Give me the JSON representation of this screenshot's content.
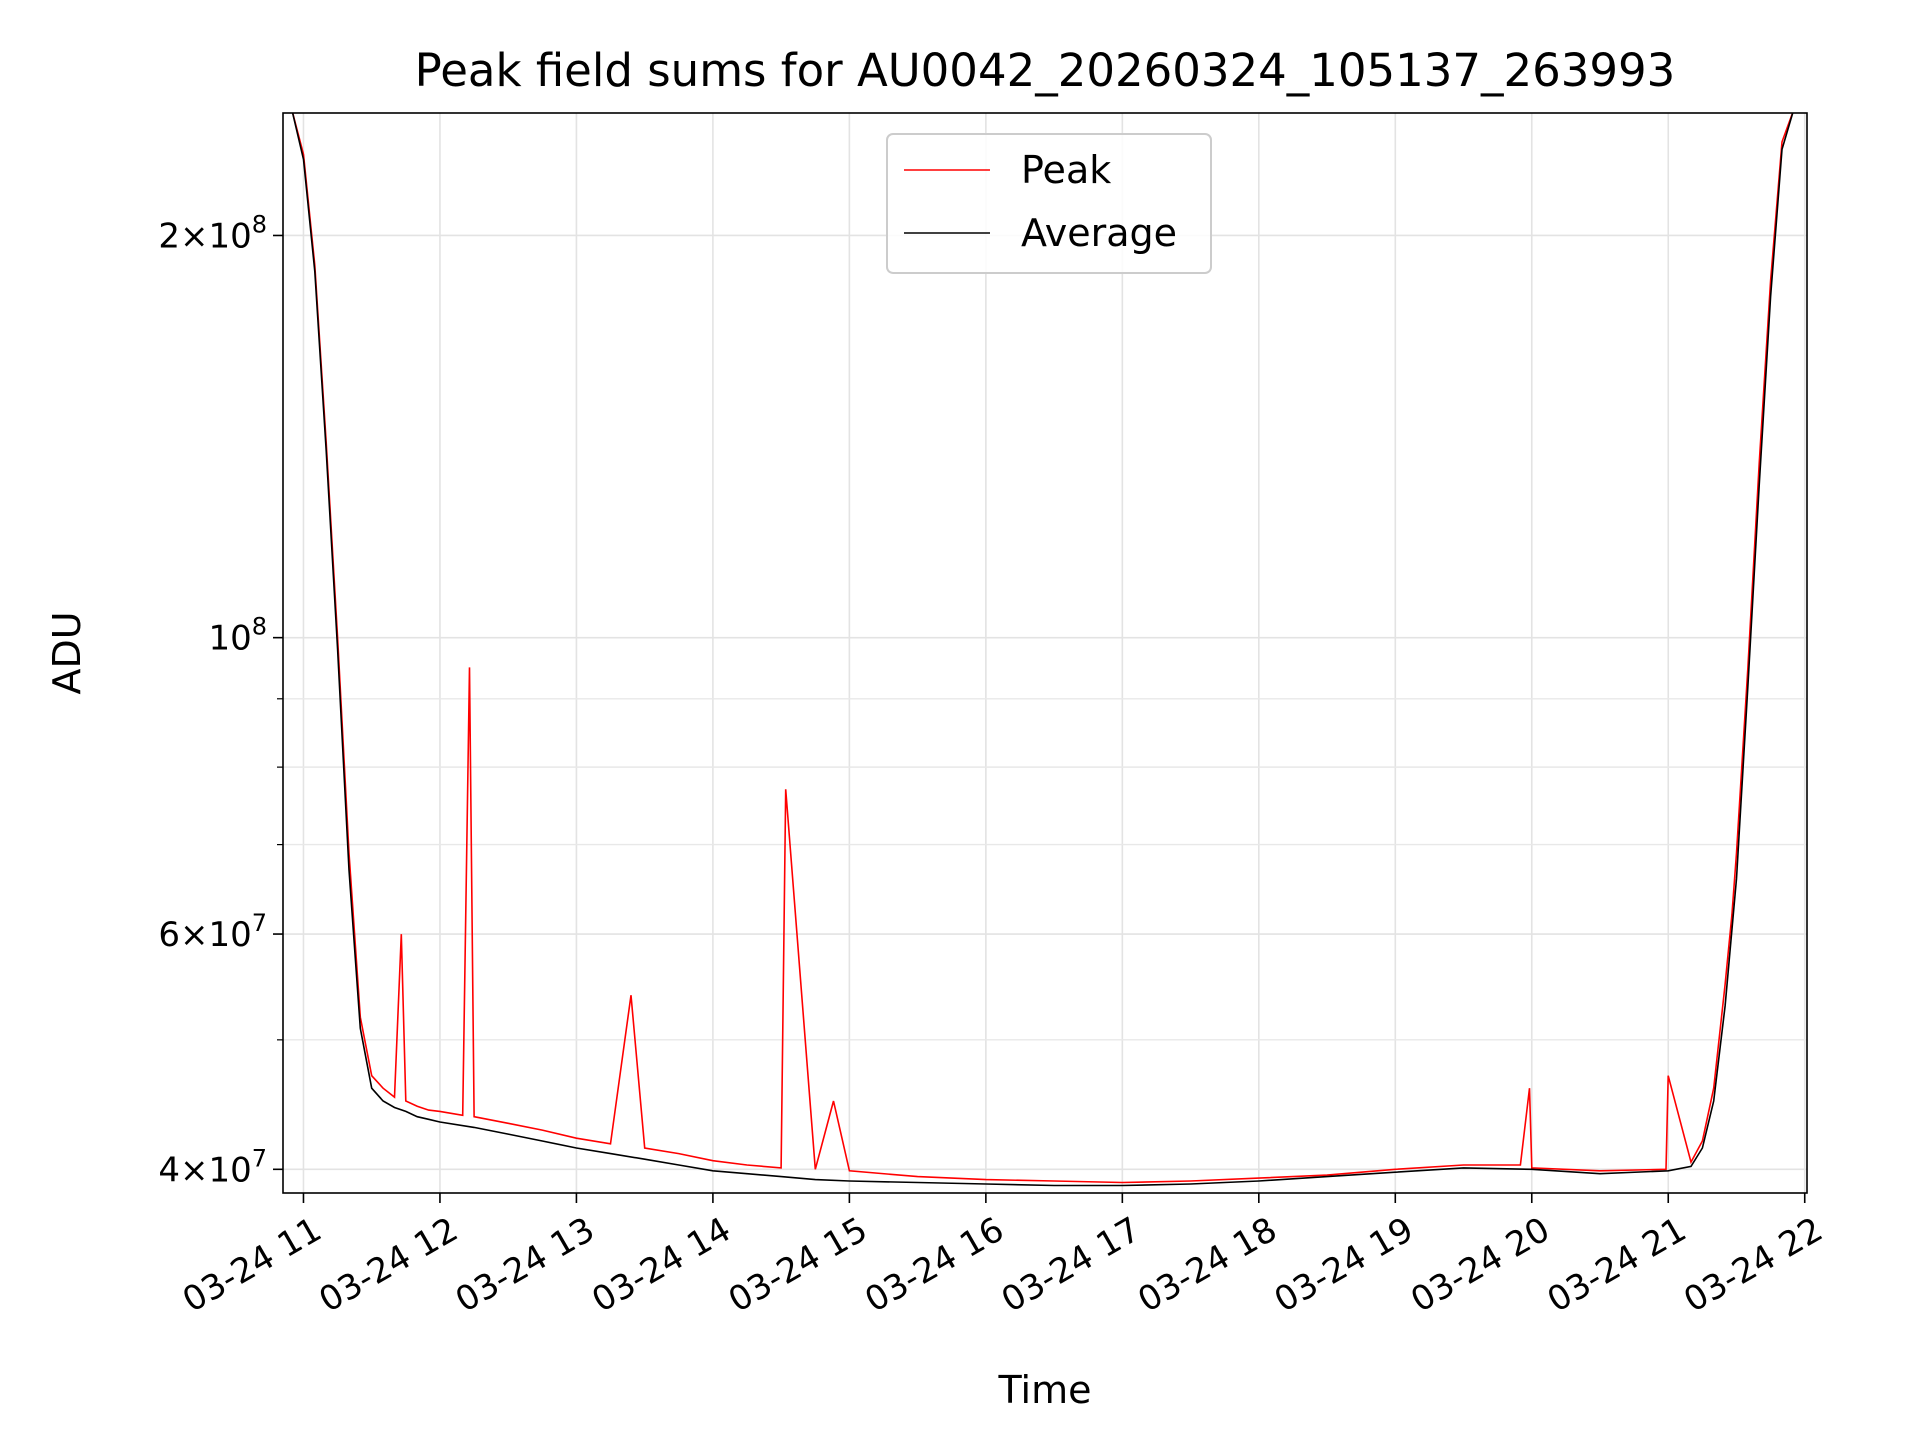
{
  "chart_data": {
    "type": "line",
    "title": "Peak field sums for AU0042_20260324_105137_263993",
    "xlabel": "Time",
    "ylabel": "ADU",
    "x_axis": "time",
    "xlim": [
      "2026-03-24 10:51",
      "2026-03-24 22:01"
    ],
    "y_scale": "log",
    "ylim": [
      38400000,
      247000000
    ],
    "x_ticks": [
      {
        "value": "2026-03-24 11:00",
        "label": "03-24 11"
      },
      {
        "value": "2026-03-24 12:00",
        "label": "03-24 12"
      },
      {
        "value": "2026-03-24 13:00",
        "label": "03-24 13"
      },
      {
        "value": "2026-03-24 14:00",
        "label": "03-24 14"
      },
      {
        "value": "2026-03-24 15:00",
        "label": "03-24 15"
      },
      {
        "value": "2026-03-24 16:00",
        "label": "03-24 16"
      },
      {
        "value": "2026-03-24 17:00",
        "label": "03-24 17"
      },
      {
        "value": "2026-03-24 18:00",
        "label": "03-24 18"
      },
      {
        "value": "2026-03-24 19:00",
        "label": "03-24 19"
      },
      {
        "value": "2026-03-24 20:00",
        "label": "03-24 20"
      },
      {
        "value": "2026-03-24 21:00",
        "label": "03-24 21"
      },
      {
        "value": "2026-03-24 22:00",
        "label": "03-24 22"
      }
    ],
    "y_major_ticks": [
      {
        "value": 40000000,
        "mantissa": "4",
        "exponent": "7"
      },
      {
        "value": 60000000,
        "mantissa": "6",
        "exponent": "7"
      },
      {
        "value": 100000000,
        "mantissa": "",
        "exponent": "8"
      },
      {
        "value": 200000000,
        "mantissa": "2",
        "exponent": "8"
      }
    ],
    "y_minor_ticks": [
      50000000,
      70000000,
      80000000,
      90000000
    ],
    "grid": true,
    "legend": {
      "placement": "upper center"
    },
    "series": [
      {
        "name": "Peak",
        "color": "#ff0000",
        "x": [
          "2026-03-24 10:51",
          "2026-03-24 10:55",
          "2026-03-24 11:00",
          "2026-03-24 11:05",
          "2026-03-24 11:10",
          "2026-03-24 11:15",
          "2026-03-24 11:20",
          "2026-03-24 11:25",
          "2026-03-24 11:30",
          "2026-03-24 11:35",
          "2026-03-24 11:40",
          "2026-03-24 11:43",
          "2026-03-24 11:45",
          "2026-03-24 11:50",
          "2026-03-24 11:55",
          "2026-03-24 12:00",
          "2026-03-24 12:10",
          "2026-03-24 12:13",
          "2026-03-24 12:15",
          "2026-03-24 12:30",
          "2026-03-24 12:45",
          "2026-03-24 13:00",
          "2026-03-24 13:15",
          "2026-03-24 13:24",
          "2026-03-24 13:30",
          "2026-03-24 13:45",
          "2026-03-24 14:00",
          "2026-03-24 14:15",
          "2026-03-24 14:30",
          "2026-03-24 14:32",
          "2026-03-24 14:45",
          "2026-03-24 14:53",
          "2026-03-24 15:00",
          "2026-03-24 15:30",
          "2026-03-24 16:00",
          "2026-03-24 16:30",
          "2026-03-24 17:00",
          "2026-03-24 17:30",
          "2026-03-24 18:00",
          "2026-03-24 18:30",
          "2026-03-24 19:00",
          "2026-03-24 19:30",
          "2026-03-24 19:55",
          "2026-03-24 19:59",
          "2026-03-24 20:00",
          "2026-03-24 20:30",
          "2026-03-24 20:59",
          "2026-03-24 21:00",
          "2026-03-24 21:10",
          "2026-03-24 21:15",
          "2026-03-24 21:20",
          "2026-03-24 21:25",
          "2026-03-24 21:28",
          "2026-03-24 21:30",
          "2026-03-24 21:35",
          "2026-03-24 21:40",
          "2026-03-24 21:45",
          "2026-03-24 21:50",
          "2026-03-24 21:55"
        ],
        "y": [
          248000000,
          248000000,
          230000000,
          190000000,
          140000000,
          100000000,
          69000000,
          52000000,
          47000000,
          46000000,
          45300000,
          60000000,
          45000000,
          44600000,
          44300000,
          44200000,
          43900000,
          95000000,
          43800000,
          43300000,
          42800000,
          42200000,
          41800000,
          54000000,
          41500000,
          41100000,
          40600000,
          40300000,
          40100000,
          77000000,
          40000000,
          45000000,
          39900000,
          39500000,
          39300000,
          39200000,
          39100000,
          39200000,
          39400000,
          39600000,
          40000000,
          40300000,
          40300000,
          46000000,
          40100000,
          39900000,
          40000000,
          47000000,
          40500000,
          42000000,
          46000000,
          55000000,
          62000000,
          69000000,
          95000000,
          135000000,
          185000000,
          235000000,
          248000000
        ]
      },
      {
        "name": "Average",
        "color": "#000000",
        "x": [
          "2026-03-24 10:51",
          "2026-03-24 10:55",
          "2026-03-24 11:00",
          "2026-03-24 11:05",
          "2026-03-24 11:10",
          "2026-03-24 11:15",
          "2026-03-24 11:20",
          "2026-03-24 11:25",
          "2026-03-24 11:30",
          "2026-03-24 11:35",
          "2026-03-24 11:40",
          "2026-03-24 11:45",
          "2026-03-24 11:50",
          "2026-03-24 11:55",
          "2026-03-24 12:00",
          "2026-03-24 12:15",
          "2026-03-24 12:30",
          "2026-03-24 12:45",
          "2026-03-24 13:00",
          "2026-03-24 13:15",
          "2026-03-24 13:30",
          "2026-03-24 13:45",
          "2026-03-24 14:00",
          "2026-03-24 14:15",
          "2026-03-24 14:30",
          "2026-03-24 14:45",
          "2026-03-24 15:00",
          "2026-03-24 15:30",
          "2026-03-24 16:00",
          "2026-03-24 16:30",
          "2026-03-24 17:00",
          "2026-03-24 17:30",
          "2026-03-24 18:00",
          "2026-03-24 18:30",
          "2026-03-24 19:00",
          "2026-03-24 19:30",
          "2026-03-24 20:00",
          "2026-03-24 20:30",
          "2026-03-24 21:00",
          "2026-03-24 21:10",
          "2026-03-24 21:15",
          "2026-03-24 21:20",
          "2026-03-24 21:25",
          "2026-03-24 21:30",
          "2026-03-24 21:35",
          "2026-03-24 21:40",
          "2026-03-24 21:45",
          "2026-03-24 21:50",
          "2026-03-24 21:55"
        ],
        "y": [
          248000000,
          248000000,
          228000000,
          188000000,
          138000000,
          98000000,
          67000000,
          51000000,
          46000000,
          45000000,
          44500000,
          44200000,
          43800000,
          43600000,
          43400000,
          43000000,
          42500000,
          42000000,
          41500000,
          41100000,
          40700000,
          40300000,
          39900000,
          39700000,
          39500000,
          39300000,
          39200000,
          39100000,
          39000000,
          38900000,
          38900000,
          39000000,
          39200000,
          39500000,
          39800000,
          40100000,
          40000000,
          39700000,
          39900000,
          40200000,
          41500000,
          45000000,
          53000000,
          66000000,
          92000000,
          130000000,
          180000000,
          232000000,
          248000000
        ]
      }
    ]
  }
}
